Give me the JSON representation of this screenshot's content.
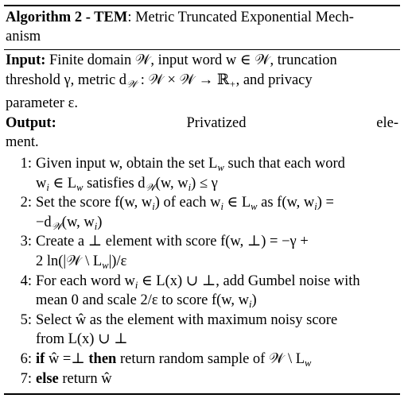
{
  "caption": {
    "label": "Algorithm 2 - TEM",
    "title_line1": ": Metric Truncated Exponential Mech-",
    "title_line2": "anism"
  },
  "input": {
    "label": "Input:",
    "line1": " Finite domain 𝒲, input word w ∈ 𝒲, truncation",
    "line2": "threshold γ, metric d",
    "line2_sub": "𝒲",
    "line2_rest": " : 𝒲 × 𝒲 → ℝ",
    "line2_sub2": "+",
    "line2_end": ", and privacy",
    "line3": "parameter ε."
  },
  "output": {
    "label": "Output:",
    "word1": "Privatized",
    "word2": "ele-",
    "line2": "ment."
  },
  "steps": [
    {
      "num": "1:",
      "l1": "Given input w, obtain the set L",
      "l1_sub": "w",
      "l1_rest": " such that each word",
      "l2": "w",
      "l2_sub": "i",
      "l2_rest": " ∈ L",
      "l2_sub2": "w",
      "l2_end": " satisfies d",
      "l2_sub3": "𝒲",
      "l2_tail": "(w, w",
      "l2_sub4": "i",
      "l2_fin": ") ≤ γ"
    },
    {
      "num": "2:",
      "l1": "Set the score f(w, w",
      "l1_sub": "i",
      "l1_rest": ") of each w",
      "l1_sub2": "i",
      "l1_mid": " ∈ L",
      "l1_sub3": "w",
      "l1_end": " as f(w, w",
      "l1_sub4": "i",
      "l1_fin": ") =",
      "l2": "−d",
      "l2_sub": "𝒲",
      "l2_rest": "(w, w",
      "l2_sub2": "i",
      "l2_end": ")"
    },
    {
      "num": "3:",
      "l1": "Create a ⊥ element with score f(w, ⊥) = −γ +",
      "l2": "2 ln(|𝒲 \\ L",
      "l2_sub": "w",
      "l2_rest": "|)/ε"
    },
    {
      "num": "4:",
      "l1": "For each word w",
      "l1_sub": "i",
      "l1_rest": " ∈ L(x) ∪ ⊥, add Gumbel noise with",
      "l2": "mean 0 and scale 2/ε to score f(w, w",
      "l2_sub": "i",
      "l2_rest": ")"
    },
    {
      "num": "5:",
      "l1": "Select ŵ as the element with maximum noisy score",
      "l2": "from L(x) ∪ ⊥"
    },
    {
      "num": "6:",
      "kw_if": "if",
      "l1": " ŵ =⊥ ",
      "kw_then": "then",
      "l1_rest": " return random sample of 𝒲 \\ L",
      "l1_sub": "w"
    },
    {
      "num": "7:",
      "kw_else": "else",
      "l1": " return ŵ"
    }
  ]
}
